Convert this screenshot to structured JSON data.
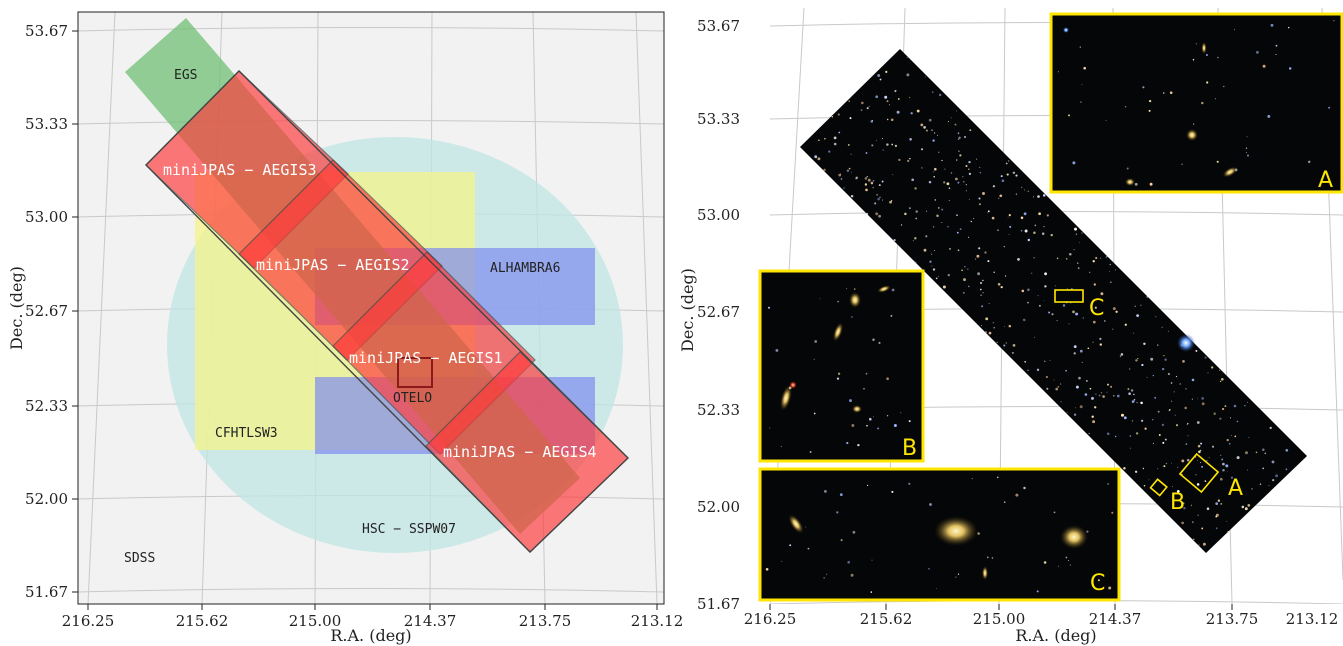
{
  "chart_data": [
    {
      "type": "footprint-map",
      "xlabel": "R.A. (deg)",
      "ylabel": "Dec. (deg)",
      "xlim": [
        216.25,
        213.12
      ],
      "ylim": [
        51.67,
        53.67
      ],
      "xticks": [
        "216.25",
        "215.62",
        "215.00",
        "214.37",
        "213.75",
        "213.12"
      ],
      "yticks": [
        "53.67",
        "53.33",
        "53.00",
        "52.67",
        "52.33",
        "52.00",
        "51.67"
      ],
      "grid": true,
      "surveys": [
        {
          "name": "EGS",
          "color": "#6fbf73"
        },
        {
          "name": "CFHTLSW3",
          "color": "#f4f489"
        },
        {
          "name": "ALHAMBRA6",
          "color": "#7f8cf0"
        },
        {
          "name": "HSC − SSPW07",
          "color": "#bfe6e3"
        },
        {
          "name": "OTELO",
          "color": "#8b1a1a"
        },
        {
          "name": "SDSS",
          "color": "#eeeeee"
        }
      ],
      "minijpas_fields": [
        {
          "name": "miniJPAS − AEGIS3"
        },
        {
          "name": "miniJPAS − AEGIS2"
        },
        {
          "name": "miniJPAS − AEGIS1"
        },
        {
          "name": "miniJPAS − AEGIS4"
        }
      ],
      "minijpas_color": "#ff3b3b"
    },
    {
      "type": "image-map",
      "xlabel": "R.A. (deg)",
      "ylabel": "Dec. (deg)",
      "xlim": [
        216.25,
        213.12
      ],
      "ylim": [
        51.67,
        53.67
      ],
      "xticks": [
        "216.25",
        "215.62",
        "215.00",
        "214.37",
        "213.75",
        "213.12"
      ],
      "yticks": [
        "53.67",
        "53.33",
        "53.00",
        "52.67",
        "52.33",
        "52.00",
        "51.67"
      ],
      "grid": true,
      "insets": [
        {
          "label": "A"
        },
        {
          "label": "B"
        },
        {
          "label": "C"
        }
      ],
      "inset_color": "#ffe600"
    }
  ]
}
